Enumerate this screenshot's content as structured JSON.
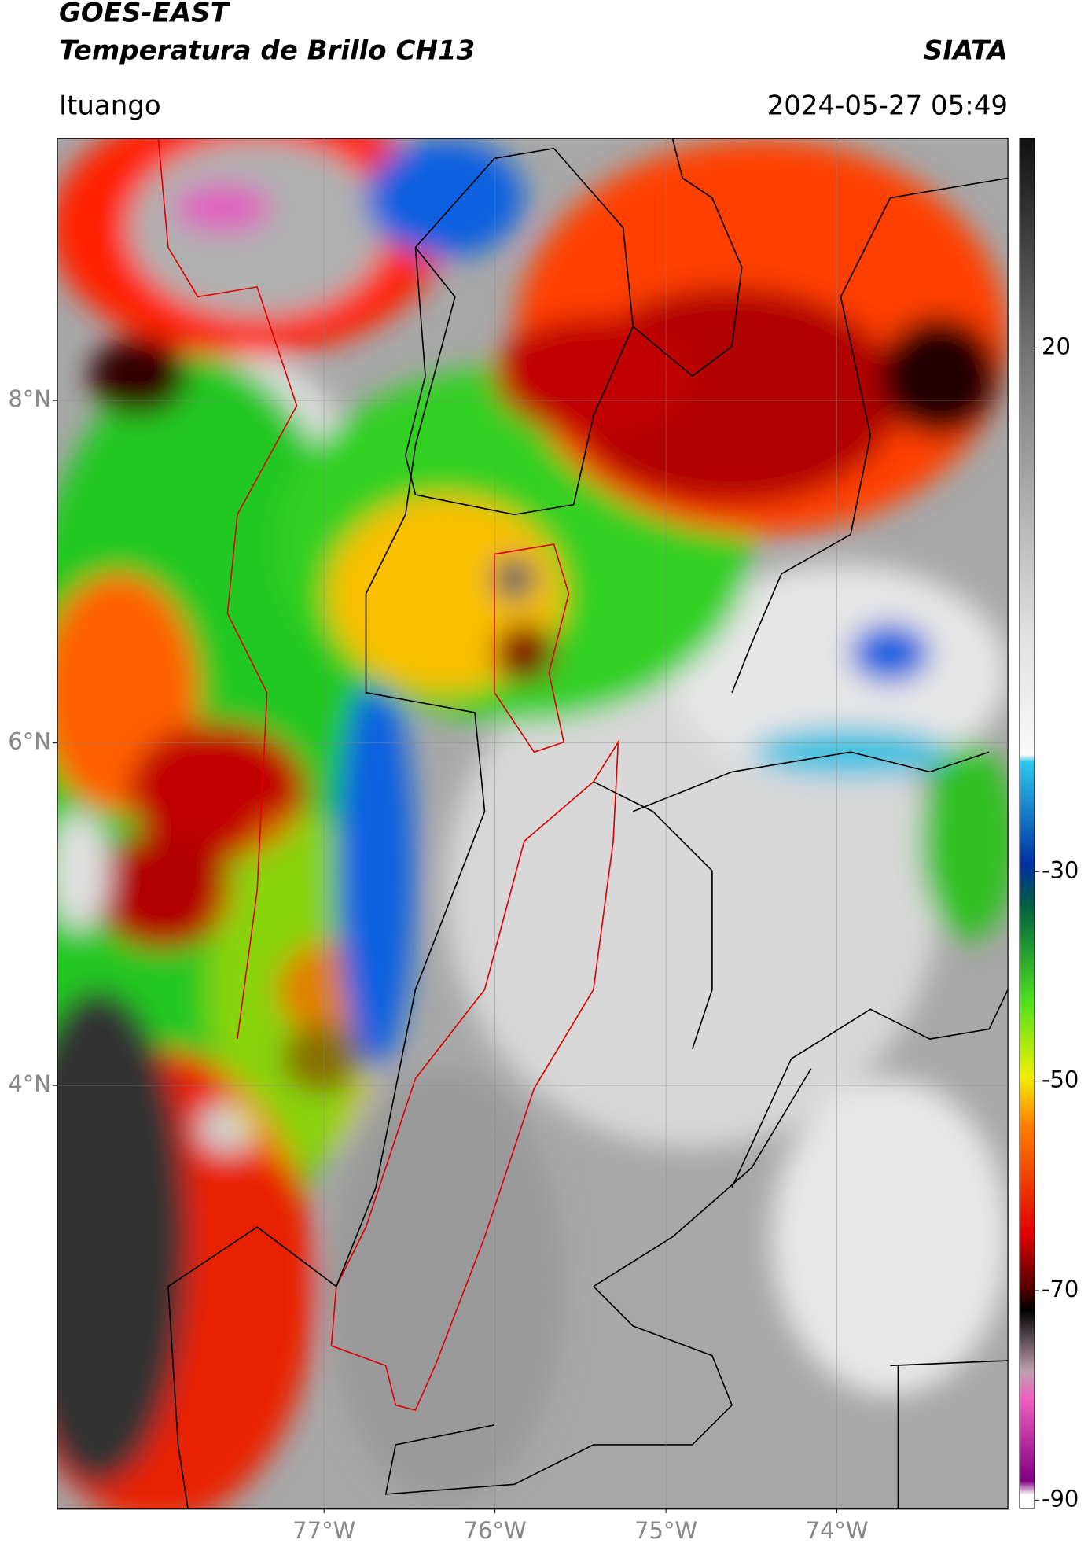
{
  "chart_data": {
    "type": "map",
    "title": "GOES-EAST",
    "subtitle": "Temperatura de Brillo CH13",
    "source": "SIATA",
    "location": "Ituango",
    "datetime": "2024-05-27 05:49",
    "xlim": [
      -78.56,
      -73.0
    ],
    "ylim": [
      1.53,
      9.53
    ],
    "xticks": [
      {
        "value": -77,
        "label": "77°W"
      },
      {
        "value": -76,
        "label": "76°W"
      },
      {
        "value": -75,
        "label": "75°W"
      },
      {
        "value": -74,
        "label": "74°W"
      }
    ],
    "yticks": [
      {
        "value": 8,
        "label": "8°N"
      },
      {
        "value": 6,
        "label": "6°N"
      },
      {
        "value": 4,
        "label": "4°N"
      }
    ],
    "grid": true,
    "colorbar": {
      "lim": [
        -90.8,
        40
      ],
      "ticks": [
        20,
        -30,
        -50,
        -70,
        -90
      ]
    }
  }
}
